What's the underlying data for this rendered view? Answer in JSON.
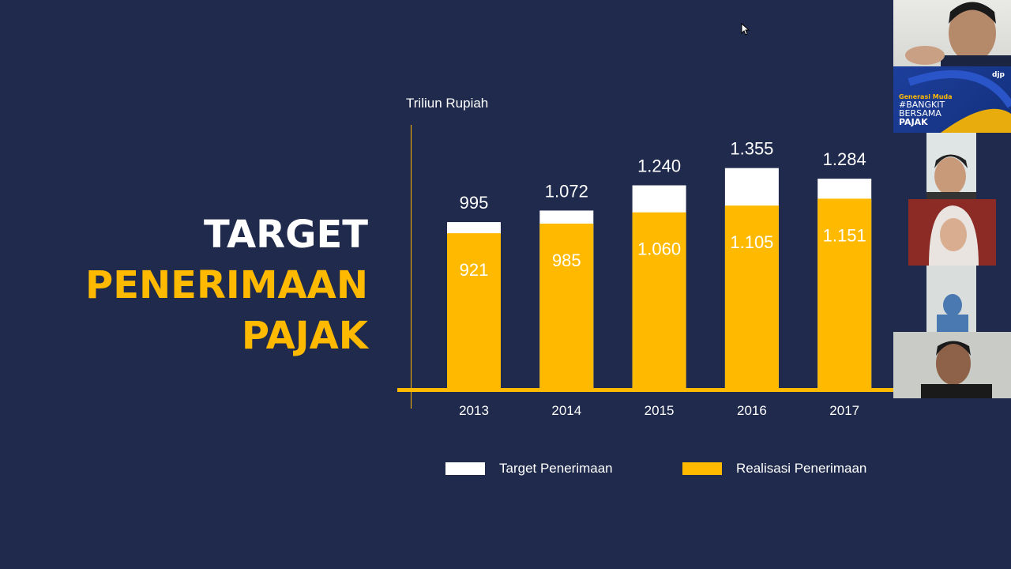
{
  "slide": {
    "title_lines": [
      "TARGET",
      "PENERIMAAN",
      "PAJAK"
    ],
    "unit_label": "Triliun Rupiah"
  },
  "chart_data": {
    "type": "bar",
    "stacked": "overlay",
    "categories": [
      "2013",
      "2014",
      "2015",
      "2016",
      "2017"
    ],
    "series": [
      {
        "name": "Target Penerimaan",
        "color": "#ffffff",
        "values": [
          995,
          1072,
          1240,
          1355,
          1284
        ],
        "labels": [
          "995",
          "1.072",
          "1.240",
          "1.355",
          "1.284"
        ]
      },
      {
        "name": "Realisasi Penerimaan",
        "color": "#ffba00",
        "values": [
          921,
          985,
          1060,
          1105,
          1151
        ],
        "labels": [
          "921",
          "985",
          "1.060",
          "1.105",
          "1.151"
        ]
      }
    ],
    "ylabel": "Triliun Rupiah",
    "grid": false,
    "legend": "bottom"
  },
  "participants": {
    "banner": {
      "line1": "Generasi Muda",
      "line2": "#BANGKIT",
      "line3": "BERSAMA",
      "line4": "PAJAK",
      "logo": "djp"
    }
  }
}
